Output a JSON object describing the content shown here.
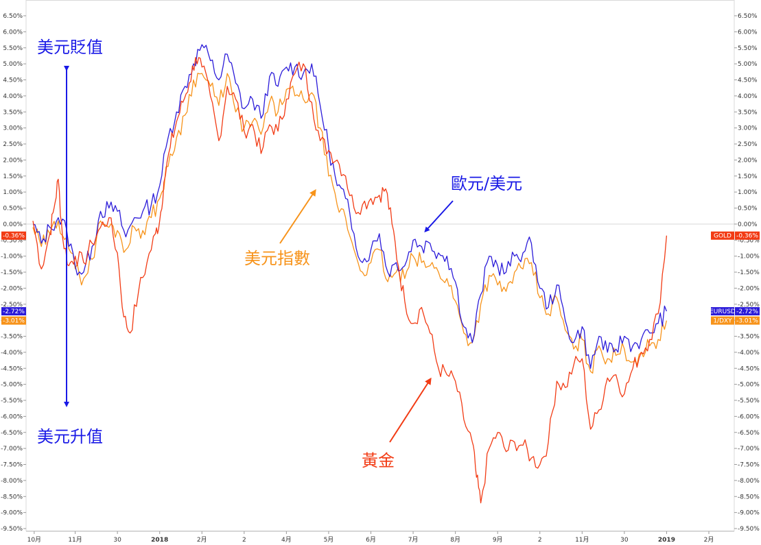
{
  "chart_data": {
    "type": "line",
    "ylim": [
      -9.5,
      6.5
    ],
    "y_ticks": [
      6.5,
      6.0,
      5.5,
      5.0,
      4.5,
      4.0,
      3.5,
      3.0,
      2.5,
      2.0,
      1.5,
      1.0,
      0.5,
      0.0,
      -0.5,
      -1.0,
      -1.5,
      -2.0,
      -2.5,
      -3.0,
      -3.5,
      -4.0,
      -4.5,
      -5.0,
      -5.5,
      -6.0,
      -6.5,
      -7.0,
      -7.5,
      -8.0,
      -8.5,
      -9.0,
      -9.5
    ],
    "y_tick_labels": [
      "6.50%",
      "6.00%",
      "5.50%",
      "5.00%",
      "4.50%",
      "4.00%",
      "3.50%",
      "3.00%",
      "2.50%",
      "2.00%",
      "1.50%",
      "1.00%",
      "0.50%",
      "0.00%",
      "-0.50%",
      "-1.00%",
      "-1.50%",
      "-2.00%",
      "-2.50%",
      "-3.00%",
      "-3.50%",
      "-4.00%",
      "-4.50%",
      "-5.00%",
      "-5.50%",
      "-6.00%",
      "-6.50%",
      "-7.00%",
      "-7.50%",
      "-8.00%",
      "-8.50%",
      "-9.00%",
      "-9.50%"
    ],
    "x_ticks": [
      {
        "label": "10月",
        "t": 0.03,
        "bold": false
      },
      {
        "label": "11月",
        "t": 1.0,
        "bold": false
      },
      {
        "label": "30",
        "t": 2.0,
        "bold": false
      },
      {
        "label": "2018",
        "t": 3.0,
        "bold": true
      },
      {
        "label": "2月",
        "t": 4.0,
        "bold": false
      },
      {
        "label": "2",
        "t": 5.0,
        "bold": false
      },
      {
        "label": "4月",
        "t": 6.0,
        "bold": false
      },
      {
        "label": "5月",
        "t": 7.0,
        "bold": false
      },
      {
        "label": "6月",
        "t": 8.0,
        "bold": false
      },
      {
        "label": "7月",
        "t": 9.0,
        "bold": false
      },
      {
        "label": "8月",
        "t": 10.0,
        "bold": false
      },
      {
        "label": "9月",
        "t": 11.0,
        "bold": false
      },
      {
        "label": "2",
        "t": 12.0,
        "bold": false
      },
      {
        "label": "11月",
        "t": 13.0,
        "bold": false
      },
      {
        "label": "30",
        "t": 14.0,
        "bold": false
      },
      {
        "label": "2019",
        "t": 15.0,
        "bold": true
      },
      {
        "label": "2月",
        "t": 16.0,
        "bold": false
      }
    ],
    "x_range": [
      -0.1,
      16.1
    ],
    "series": [
      {
        "name": "GOLD",
        "color": "#f23b14",
        "last_label": "-0.36%",
        "points": [
          [
            0.0,
            0.1
          ],
          [
            0.2,
            -1.4
          ],
          [
            0.4,
            -0.3
          ],
          [
            0.5,
            0.5
          ],
          [
            0.6,
            1.4
          ],
          [
            0.7,
            -0.4
          ],
          [
            0.85,
            -1.3
          ],
          [
            1.0,
            -1.0
          ],
          [
            1.2,
            -1.2
          ],
          [
            1.4,
            -0.6
          ],
          [
            1.6,
            -0.1
          ],
          [
            1.8,
            0.2
          ],
          [
            2.0,
            -0.9
          ],
          [
            2.15,
            -2.9
          ],
          [
            2.3,
            -3.4
          ],
          [
            2.5,
            -2.1
          ],
          [
            2.7,
            -1.2
          ],
          [
            2.9,
            -0.3
          ],
          [
            3.0,
            0.1
          ],
          [
            3.1,
            1.3
          ],
          [
            3.25,
            2.4
          ],
          [
            3.4,
            3.2
          ],
          [
            3.55,
            3.8
          ],
          [
            3.7,
            4.4
          ],
          [
            3.85,
            5.2
          ],
          [
            4.0,
            4.9
          ],
          [
            4.2,
            4.0
          ],
          [
            4.4,
            2.6
          ],
          [
            4.6,
            4.3
          ],
          [
            4.8,
            3.9
          ],
          [
            5.0,
            2.9
          ],
          [
            5.2,
            3.1
          ],
          [
            5.4,
            2.2
          ],
          [
            5.6,
            3.1
          ],
          [
            5.8,
            2.9
          ],
          [
            6.0,
            3.9
          ],
          [
            6.2,
            4.7
          ],
          [
            6.4,
            5.0
          ],
          [
            6.6,
            3.8
          ],
          [
            6.8,
            2.6
          ],
          [
            7.0,
            2.3
          ],
          [
            7.2,
            2.0
          ],
          [
            7.4,
            1.5
          ],
          [
            7.6,
            0.5
          ],
          [
            7.8,
            0.6
          ],
          [
            8.0,
            0.8
          ],
          [
            8.2,
            0.9
          ],
          [
            8.35,
            1.1
          ],
          [
            8.5,
            0.0
          ],
          [
            8.65,
            -1.3
          ],
          [
            8.8,
            -2.4
          ],
          [
            9.0,
            -3.1
          ],
          [
            9.2,
            -2.6
          ],
          [
            9.4,
            -3.4
          ],
          [
            9.6,
            -4.5
          ],
          [
            9.8,
            -4.7
          ],
          [
            10.0,
            -4.9
          ],
          [
            10.2,
            -6.1
          ],
          [
            10.4,
            -6.8
          ],
          [
            10.5,
            -7.9
          ],
          [
            10.6,
            -8.7
          ],
          [
            10.8,
            -7.0
          ],
          [
            11.0,
            -6.5
          ],
          [
            11.2,
            -7.1
          ],
          [
            11.4,
            -6.8
          ],
          [
            11.6,
            -6.9
          ],
          [
            11.8,
            -7.3
          ],
          [
            12.0,
            -7.5
          ],
          [
            12.2,
            -6.8
          ],
          [
            12.4,
            -4.9
          ],
          [
            12.6,
            -5.1
          ],
          [
            12.8,
            -4.4
          ],
          [
            13.0,
            -4.2
          ],
          [
            13.2,
            -6.4
          ],
          [
            13.4,
            -5.8
          ],
          [
            13.6,
            -4.8
          ],
          [
            13.8,
            -4.7
          ],
          [
            14.0,
            -5.3
          ],
          [
            14.2,
            -4.5
          ],
          [
            14.4,
            -4.0
          ],
          [
            14.6,
            -3.6
          ],
          [
            14.8,
            -2.8
          ],
          [
            15.0,
            -0.36
          ]
        ]
      },
      {
        "name": "EURUSD",
        "color": "#2b1bd9",
        "last_label": "-2.72%",
        "points": [
          [
            0.0,
            0.0
          ],
          [
            0.2,
            -0.6
          ],
          [
            0.4,
            -0.1
          ],
          [
            0.6,
            0.2
          ],
          [
            0.8,
            -0.2
          ],
          [
            1.0,
            -1.3
          ],
          [
            1.2,
            -1.5
          ],
          [
            1.4,
            -0.7
          ],
          [
            1.6,
            0.4
          ],
          [
            1.8,
            0.5
          ],
          [
            2.0,
            0.4
          ],
          [
            2.2,
            -0.4
          ],
          [
            2.4,
            0.2
          ],
          [
            2.6,
            0.4
          ],
          [
            2.8,
            0.6
          ],
          [
            3.0,
            1.2
          ],
          [
            3.2,
            2.7
          ],
          [
            3.4,
            3.5
          ],
          [
            3.6,
            4.3
          ],
          [
            3.8,
            5.0
          ],
          [
            4.0,
            5.6
          ],
          [
            4.2,
            5.1
          ],
          [
            4.4,
            4.5
          ],
          [
            4.6,
            5.3
          ],
          [
            4.8,
            4.4
          ],
          [
            5.0,
            3.6
          ],
          [
            5.2,
            3.9
          ],
          [
            5.4,
            3.3
          ],
          [
            5.6,
            4.6
          ],
          [
            5.8,
            4.3
          ],
          [
            6.0,
            4.9
          ],
          [
            6.2,
            4.9
          ],
          [
            6.4,
            4.7
          ],
          [
            6.6,
            5.0
          ],
          [
            6.8,
            3.7
          ],
          [
            7.0,
            2.4
          ],
          [
            7.2,
            1.2
          ],
          [
            7.4,
            0.8
          ],
          [
            7.6,
            -0.3
          ],
          [
            7.8,
            -1.2
          ],
          [
            8.0,
            -0.8
          ],
          [
            8.2,
            -0.3
          ],
          [
            8.4,
            -1.5
          ],
          [
            8.6,
            -1.2
          ],
          [
            8.8,
            -1.3
          ],
          [
            9.0,
            -0.5
          ],
          [
            9.2,
            -0.7
          ],
          [
            9.4,
            -0.6
          ],
          [
            9.6,
            -0.9
          ],
          [
            9.8,
            -1.0
          ],
          [
            10.0,
            -1.8
          ],
          [
            10.2,
            -3.2
          ],
          [
            10.4,
            -3.7
          ],
          [
            10.6,
            -2.2
          ],
          [
            10.8,
            -1.0
          ],
          [
            11.0,
            -1.3
          ],
          [
            11.2,
            -1.5
          ],
          [
            11.4,
            -1.0
          ],
          [
            11.6,
            -0.9
          ],
          [
            11.8,
            -0.6
          ],
          [
            12.0,
            -2.0
          ],
          [
            12.2,
            -2.6
          ],
          [
            12.4,
            -1.9
          ],
          [
            12.6,
            -3.0
          ],
          [
            12.8,
            -3.7
          ],
          [
            13.0,
            -3.2
          ],
          [
            13.2,
            -4.5
          ],
          [
            13.4,
            -3.5
          ],
          [
            13.6,
            -4.0
          ],
          [
            13.8,
            -3.9
          ],
          [
            14.0,
            -3.5
          ],
          [
            14.2,
            -3.8
          ],
          [
            14.4,
            -3.6
          ],
          [
            14.6,
            -3.4
          ],
          [
            14.8,
            -3.1
          ],
          [
            15.0,
            -2.72
          ]
        ]
      },
      {
        "name": "1/DXY",
        "color": "#f7931a",
        "last_label": "-3.01%",
        "points": [
          [
            0.0,
            -0.1
          ],
          [
            0.2,
            -0.7
          ],
          [
            0.4,
            -0.3
          ],
          [
            0.6,
            0.1
          ],
          [
            0.8,
            -0.4
          ],
          [
            1.0,
            -1.4
          ],
          [
            1.2,
            -1.7
          ],
          [
            1.4,
            -1.1
          ],
          [
            1.6,
            0.1
          ],
          [
            1.8,
            -0.1
          ],
          [
            2.0,
            -0.2
          ],
          [
            2.2,
            -0.8
          ],
          [
            2.4,
            -0.1
          ],
          [
            2.6,
            -0.2
          ],
          [
            2.8,
            0.2
          ],
          [
            3.0,
            0.8
          ],
          [
            3.2,
            1.8
          ],
          [
            3.4,
            2.7
          ],
          [
            3.6,
            3.4
          ],
          [
            3.8,
            4.5
          ],
          [
            4.0,
            4.7
          ],
          [
            4.2,
            4.3
          ],
          [
            4.4,
            3.7
          ],
          [
            4.6,
            4.7
          ],
          [
            4.8,
            3.5
          ],
          [
            5.0,
            3.0
          ],
          [
            5.2,
            3.2
          ],
          [
            5.4,
            2.8
          ],
          [
            5.6,
            3.8
          ],
          [
            5.8,
            3.5
          ],
          [
            6.0,
            4.2
          ],
          [
            6.2,
            4.0
          ],
          [
            6.4,
            3.9
          ],
          [
            6.6,
            4.1
          ],
          [
            6.8,
            3.0
          ],
          [
            7.0,
            1.5
          ],
          [
            7.2,
            0.6
          ],
          [
            7.4,
            0.2
          ],
          [
            7.6,
            -0.8
          ],
          [
            7.8,
            -1.5
          ],
          [
            8.0,
            -1.2
          ],
          [
            8.2,
            -0.8
          ],
          [
            8.4,
            -1.8
          ],
          [
            8.6,
            -1.5
          ],
          [
            8.8,
            -1.7
          ],
          [
            9.0,
            -1.0
          ],
          [
            9.2,
            -1.2
          ],
          [
            9.4,
            -1.3
          ],
          [
            9.6,
            -1.5
          ],
          [
            9.8,
            -1.7
          ],
          [
            10.0,
            -2.4
          ],
          [
            10.2,
            -3.4
          ],
          [
            10.4,
            -3.7
          ],
          [
            10.6,
            -2.5
          ],
          [
            10.8,
            -1.6
          ],
          [
            11.0,
            -1.9
          ],
          [
            11.2,
            -2.1
          ],
          [
            11.4,
            -1.5
          ],
          [
            11.6,
            -1.4
          ],
          [
            11.8,
            -1.2
          ],
          [
            12.0,
            -2.3
          ],
          [
            12.2,
            -2.8
          ],
          [
            12.4,
            -2.3
          ],
          [
            12.6,
            -3.3
          ],
          [
            12.8,
            -3.9
          ],
          [
            13.0,
            -3.6
          ],
          [
            13.2,
            -4.6
          ],
          [
            13.4,
            -3.8
          ],
          [
            13.6,
            -4.2
          ],
          [
            13.8,
            -4.1
          ],
          [
            14.0,
            -3.9
          ],
          [
            14.2,
            -4.3
          ],
          [
            14.4,
            -4.0
          ],
          [
            14.6,
            -3.8
          ],
          [
            14.8,
            -3.6
          ],
          [
            15.0,
            -3.01
          ]
        ]
      }
    ],
    "annotations": {
      "usd_weaken": "美元貶值",
      "usd_strengthen": "美元升值",
      "dxy_label": "美元指數",
      "eurusd_label": "歐元/美元",
      "gold_label": "黃金"
    },
    "annotation_colors": {
      "blue": "#1919e6",
      "orange": "#f7931a",
      "red": "#f23b14"
    },
    "grid": false
  }
}
